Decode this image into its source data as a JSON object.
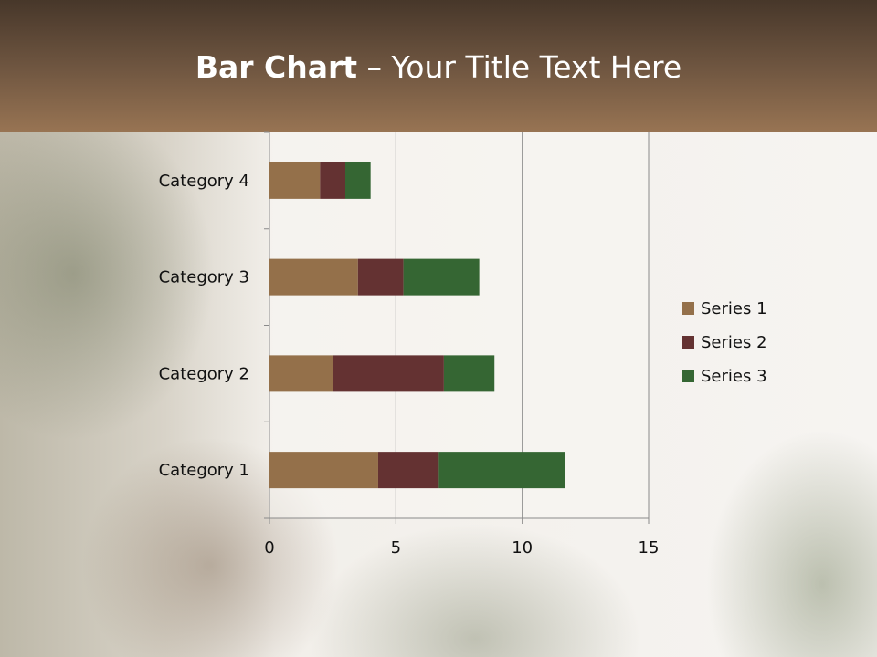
{
  "title": {
    "bold": "Bar Chart",
    "rest": " – Your Title Text Here"
  },
  "chart_data": {
    "type": "bar",
    "orientation": "horizontal",
    "stacked": true,
    "categories": [
      "Category 1",
      "Category 2",
      "Category 3",
      "Category 4"
    ],
    "series": [
      {
        "name": "Series 1",
        "values": [
          4.3,
          2.5,
          3.5,
          2.0
        ],
        "color": "#94704a"
      },
      {
        "name": "Series 2",
        "values": [
          2.4,
          4.4,
          1.8,
          1.0
        ],
        "color": "#643232"
      },
      {
        "name": "Series 3",
        "values": [
          5.0,
          2.0,
          3.0,
          1.0
        ],
        "color": "#356633"
      }
    ],
    "xlim": [
      0,
      15
    ],
    "xticks": [
      "0",
      "5",
      "10",
      "15"
    ],
    "grid": true,
    "legend": "right"
  }
}
